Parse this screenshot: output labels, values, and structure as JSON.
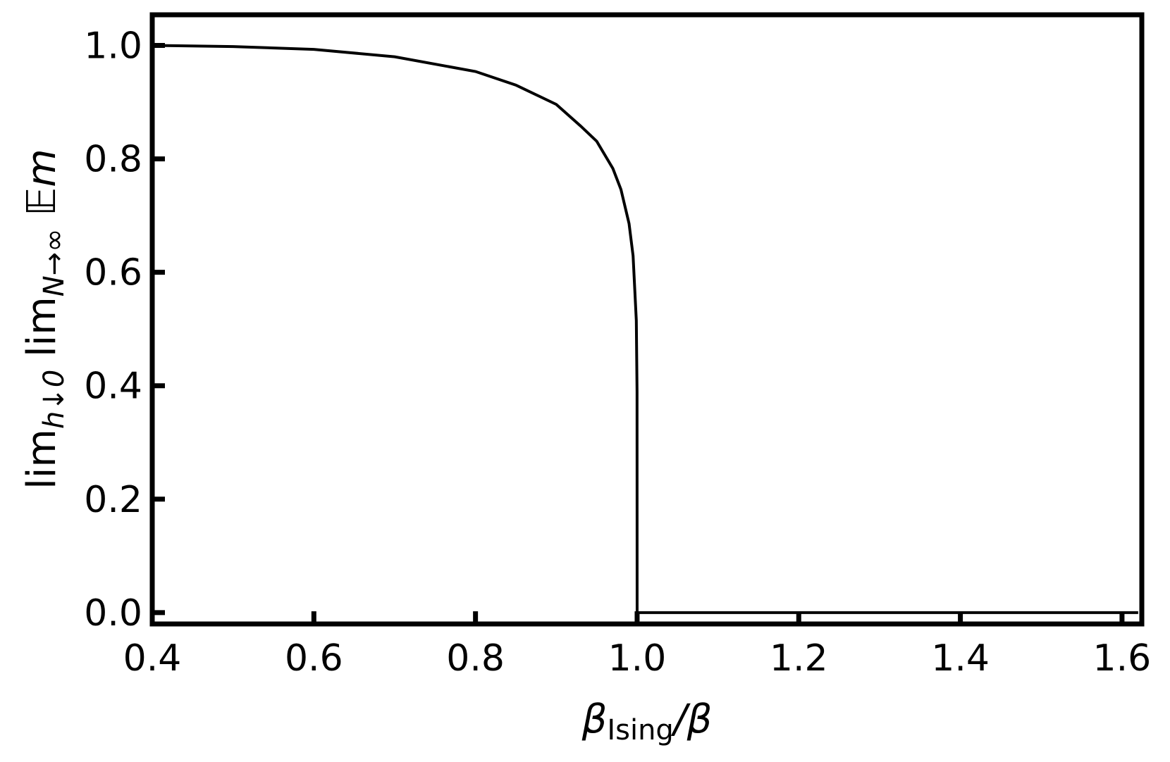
{
  "chart_data": {
    "type": "line",
    "x": [
      0.4,
      0.5,
      0.6,
      0.7,
      0.8,
      0.85,
      0.9,
      0.93,
      0.95,
      0.97,
      0.98,
      0.99,
      0.995,
      0.999,
      0.9999,
      1.0,
      1.62
    ],
    "series": [
      {
        "color": "#000000",
        "values": [
          1.0,
          0.998,
          0.993,
          0.98,
          0.954,
          0.93,
          0.896,
          0.858,
          0.831,
          0.783,
          0.746,
          0.686,
          0.629,
          0.515,
          0.39,
          0.0,
          0.0
        ]
      }
    ],
    "xlim": [
      0.4,
      1.6245
    ],
    "ylim": [
      -0.02,
      1.054
    ],
    "xticks": [
      {
        "value": 0.4,
        "label": "0.4"
      },
      {
        "value": 0.6,
        "label": "0.6"
      },
      {
        "value": 0.8,
        "label": "0.8"
      },
      {
        "value": 1.0,
        "label": "1.0"
      },
      {
        "value": 1.2,
        "label": "1.2"
      },
      {
        "value": 1.4,
        "label": "1.4"
      },
      {
        "value": 1.6,
        "label": "1.6"
      }
    ],
    "yticks": [
      {
        "value": 0.0,
        "label": "0.0"
      },
      {
        "value": 0.2,
        "label": "0.2"
      },
      {
        "value": 0.4,
        "label": "0.4"
      },
      {
        "value": 0.6,
        "label": "0.6"
      },
      {
        "value": 0.8,
        "label": "0.8"
      },
      {
        "value": 1.0,
        "label": "1.0"
      }
    ],
    "xlabel": [
      "β",
      "Ising",
      "/β"
    ],
    "ylabel": [
      "lim",
      "h↓0",
      " lim",
      "N→∞",
      " 𝔼m"
    ],
    "grid": false
  }
}
